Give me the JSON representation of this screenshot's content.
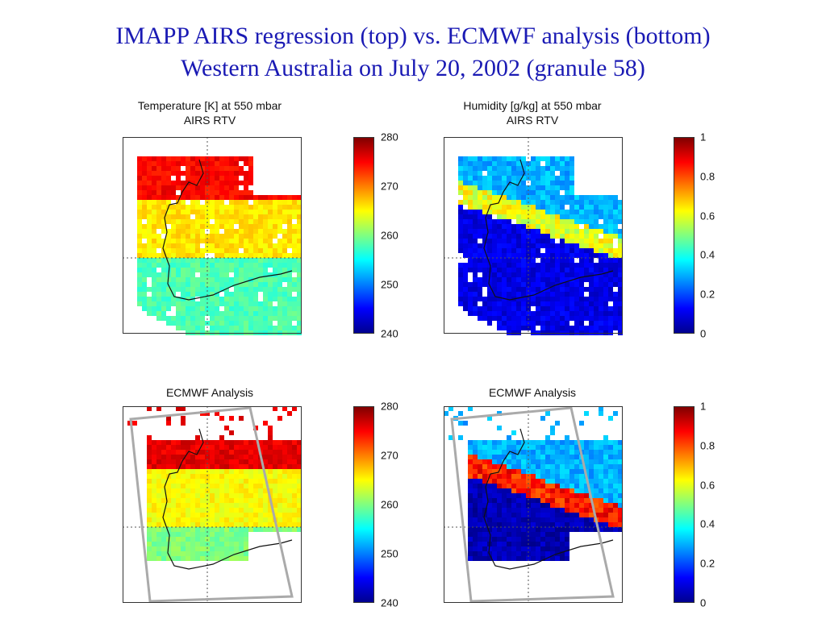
{
  "slide": {
    "title_line1": "IMAPP AIRS regression (top) vs. ECMWF analysis (bottom)",
    "title_line2": "Western Australia on July 20, 2002 (granule 58)"
  },
  "colors": {
    "title": "#1a1ab4",
    "land_outline": "#111111",
    "grid": "#555555"
  },
  "chart_data": [
    {
      "type": "heatmap",
      "title": "Temperature [K] at 550 mbar",
      "subtitle": "AIRS RTV",
      "colorbar": {
        "min": 240,
        "max": 280,
        "ticks": [
          "280",
          "270",
          "260",
          "250",
          "240"
        ]
      },
      "dominant_values": {
        "north": 275,
        "central": 266,
        "south": 258
      }
    },
    {
      "type": "heatmap",
      "title": "Humidity [g/kg] at 550 mbar",
      "subtitle": "AIRS RTV",
      "colorbar": {
        "min": 0,
        "max": 1,
        "ticks": [
          "1",
          "0.8",
          "0.6",
          "0.4",
          "0.2",
          "0"
        ]
      },
      "dominant_values": {
        "north": 0.3,
        "central_band": 0.6,
        "south": 0.1
      }
    },
    {
      "type": "heatmap",
      "title": "ECMWF Analysis",
      "subtitle": "",
      "colorbar": {
        "min": 240,
        "max": 280,
        "ticks": [
          "280",
          "270",
          "260",
          "250",
          "240"
        ]
      },
      "dominant_values": {
        "north": 276,
        "central": 265,
        "south": 260
      }
    },
    {
      "type": "heatmap",
      "title": "ECMWF Analysis",
      "subtitle": "",
      "colorbar": {
        "min": 0,
        "max": 1,
        "ticks": [
          "1",
          "0.8",
          "0.6",
          "0.4",
          "0.2",
          "0"
        ]
      },
      "dominant_values": {
        "north": 0.3,
        "central_band": 0.85,
        "south": 0.05
      }
    }
  ]
}
